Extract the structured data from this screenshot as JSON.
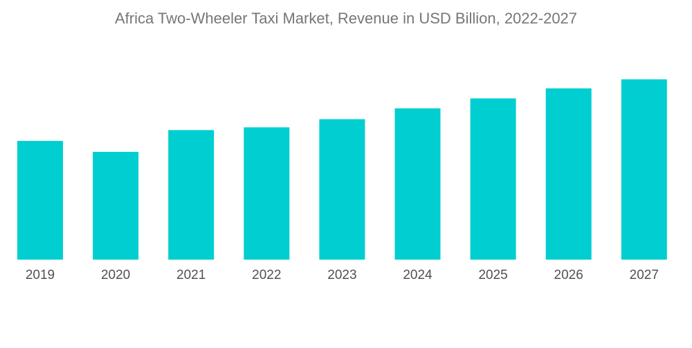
{
  "chart_data": {
    "type": "bar",
    "title": "Africa Two-Wheeler Taxi Market, Revenue in USD Billion, 2022-2027",
    "categories": [
      "2019",
      "2020",
      "2021",
      "2022",
      "2023",
      "2024",
      "2025",
      "2026",
      "2027"
    ],
    "values": [
      1.31,
      1.19,
      1.43,
      1.46,
      1.55,
      1.67,
      1.78,
      1.89,
      1.99
    ],
    "xlabel": "",
    "ylabel": "",
    "ylim": [
      0,
      2.5
    ],
    "grid": false,
    "legend": "none",
    "bar_color": "#00CED1"
  }
}
